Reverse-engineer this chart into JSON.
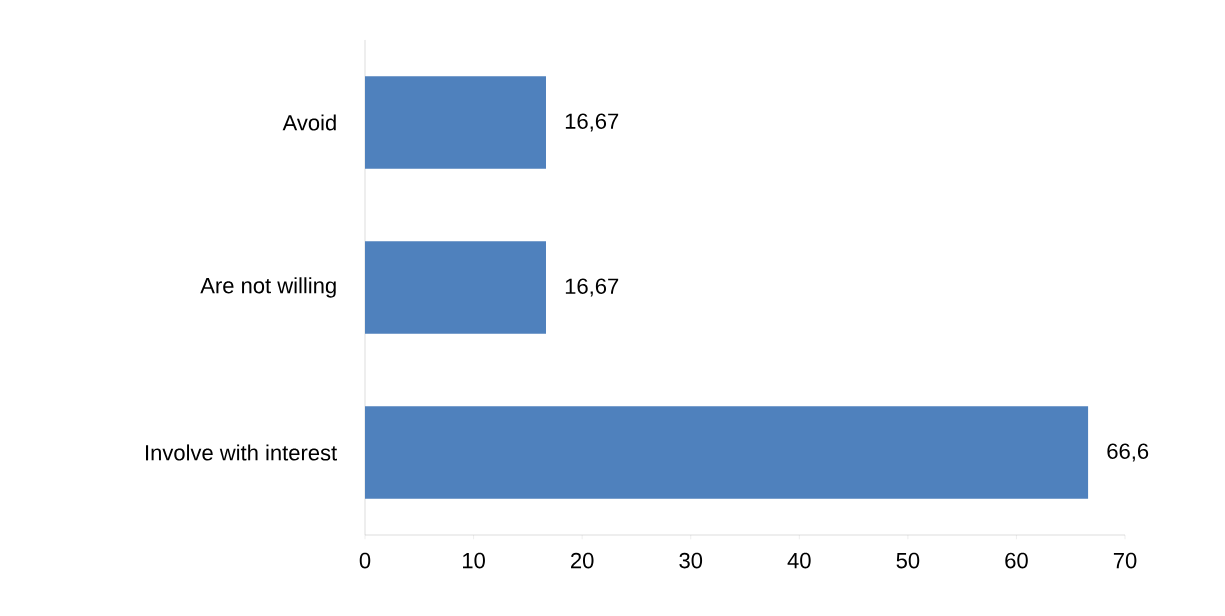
{
  "chart_data": {
    "type": "bar",
    "orientation": "horizontal",
    "categories": [
      "Avoid",
      "Are not willing",
      "Involve with interest"
    ],
    "values": [
      16.67,
      16.67,
      66.6
    ],
    "value_labels": [
      "16,67",
      "16,67",
      "66,6"
    ],
    "color": "#4f81bd",
    "xlim": [
      0,
      70
    ],
    "xticks": [
      0,
      10,
      20,
      30,
      40,
      50,
      60,
      70
    ],
    "grid": false
  }
}
